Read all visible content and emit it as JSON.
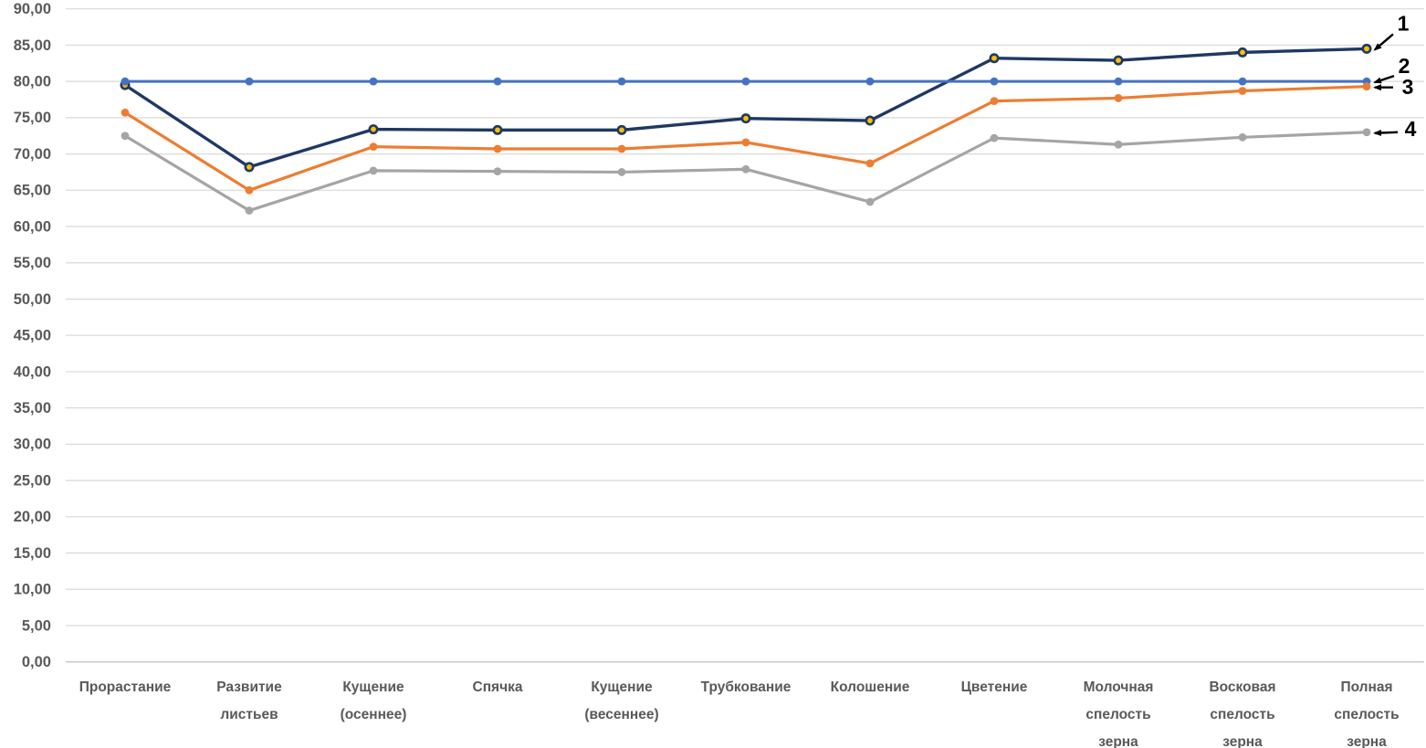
{
  "chart_data": {
    "type": "line",
    "title": "",
    "xlabel": "",
    "ylabel": "",
    "grid": "horizontal",
    "legend": "none",
    "categories": [
      "Прорастание",
      "Развитие листьев",
      "Кущение (осеннее)",
      "Спячка",
      "Кущение (весеннее)",
      "Трубкование",
      "Колошение",
      "Цветение",
      "Молочная спелость зерна",
      "Восковая спелость зерна",
      "Полная спелость зерна"
    ],
    "categories_lines": [
      [
        "Прорастание"
      ],
      [
        "Развитие",
        "листьев"
      ],
      [
        "Кущение",
        "(осеннее)"
      ],
      [
        "Спячка"
      ],
      [
        "Кущение",
        "(весеннее)"
      ],
      [
        "Трубкование"
      ],
      [
        "Колошение"
      ],
      [
        "Цветение"
      ],
      [
        "Молочная",
        "спелость",
        "зерна"
      ],
      [
        "Восковая",
        "спелость",
        "зерна"
      ],
      [
        "Полная",
        "спелость",
        "зерна"
      ]
    ],
    "series": [
      {
        "name": "1",
        "color": "#1f3864",
        "marker": "circle-gold",
        "width": 3.4,
        "values": [
          79.5,
          68.2,
          73.4,
          73.3,
          73.3,
          74.9,
          74.6,
          83.2,
          82.9,
          84.0,
          84.5
        ]
      },
      {
        "name": "2",
        "color": "#4472c4",
        "marker": "circle",
        "width": 3.0,
        "values": [
          80.0,
          80.0,
          80.0,
          80.0,
          80.0,
          80.0,
          80.0,
          80.0,
          80.0,
          80.0,
          80.0
        ]
      },
      {
        "name": "3",
        "color": "#ed7d31",
        "marker": "circle",
        "width": 3.2,
        "values": [
          75.7,
          65.0,
          71.0,
          70.7,
          70.7,
          71.6,
          68.7,
          77.3,
          77.7,
          78.7,
          79.3
        ]
      },
      {
        "name": "4",
        "color": "#a5a5a5",
        "marker": "circle",
        "width": 3.2,
        "values": [
          72.5,
          62.2,
          67.7,
          67.6,
          67.5,
          67.9,
          63.4,
          72.2,
          71.3,
          72.3,
          73.0
        ]
      }
    ],
    "ylim": [
      0,
      90
    ],
    "ytick_step": 5,
    "ytick_labels": [
      "90,00",
      "85,00",
      "80,00",
      "75,00",
      "70,00",
      "65,00",
      "60,00",
      "55,00",
      "50,00",
      "45,00",
      "40,00",
      "35,00",
      "30,00",
      "25,00",
      "20,00",
      "15,00",
      "10,00",
      "5,00",
      "0,00"
    ],
    "annotations": [
      {
        "text": "1",
        "series": 0
      },
      {
        "text": "2",
        "series": 1
      },
      {
        "text": "3",
        "series": 2
      },
      {
        "text": "4",
        "series": 3
      }
    ],
    "gridline_color": "#d9d9d9",
    "axis_line_color": "#c9c9c9",
    "axis_label_color": "#595959",
    "annotation_color": "#000000",
    "gold_marker_fill": "#ffc000",
    "background": "#ffffff"
  }
}
